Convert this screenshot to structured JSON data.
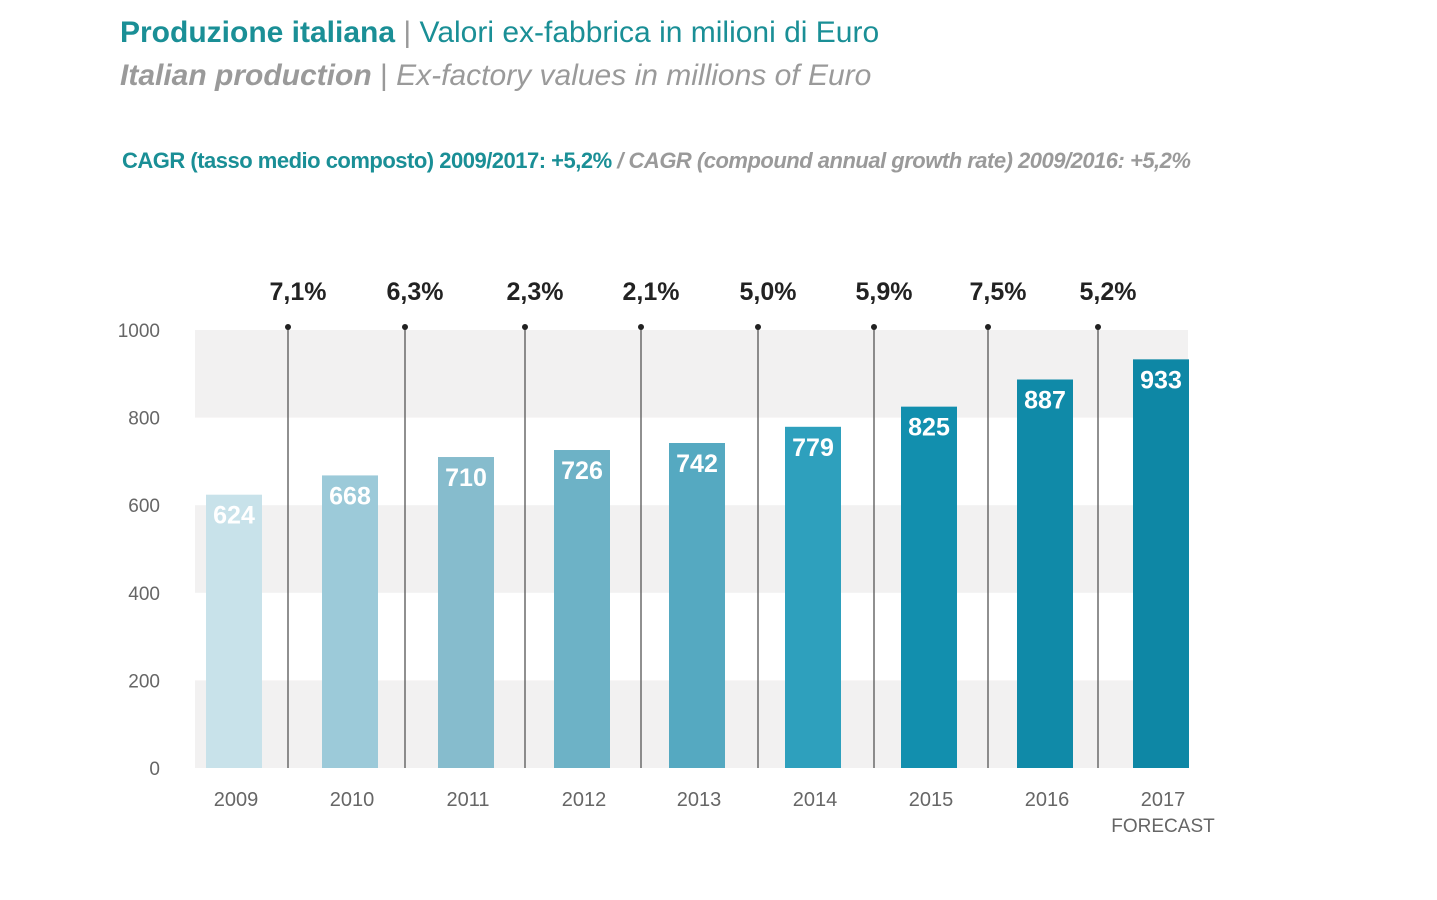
{
  "header": {
    "title_it_bold": "Produzione italiana",
    "title_it_rest": "Valori ex-fabbrica in milioni di Euro",
    "title_en_bold": "Italian production",
    "title_en_rest": "Ex-factory values in millions of Euro",
    "separator": "|",
    "cagr_it": "CAGR (tasso medio composto) 2009/2017: +5,2%",
    "cagr_slash": "/",
    "cagr_en": "CAGR (compound annual growth rate) 2009/2016: +5,2%"
  },
  "colors": {
    "accent": "#1a8f96",
    "secondary_text": "#9a9a9a",
    "band": "#f2f1f1"
  },
  "chart_data": {
    "type": "bar",
    "title": "Produzione italiana | Valori ex-fabbrica in milioni di Euro",
    "categories": [
      "2009",
      "2010",
      "2011",
      "2012",
      "2013",
      "2014",
      "2015",
      "2016",
      "2017"
    ],
    "category_sublabels": [
      "",
      "",
      "",
      "",
      "",
      "",
      "",
      "",
      "FORECAST"
    ],
    "values": [
      624,
      668,
      710,
      726,
      742,
      779,
      825,
      887,
      933
    ],
    "value_labels": [
      "624",
      "668",
      "710",
      "726",
      "742",
      "779",
      "825",
      "887",
      "933"
    ],
    "bar_colors": [
      "#c8e2ea",
      "#9ccad9",
      "#86bccd",
      "#6db2c6",
      "#55a9c1",
      "#2ea0bd",
      "#128fae",
      "#108aa8",
      "#0e87a5"
    ],
    "growth_rates": [
      "7,1%",
      "6,3%",
      "2,3%",
      "2,1%",
      "5,0%",
      "5,9%",
      "7,5%",
      "5,2%"
    ],
    "yticks": [
      0,
      200,
      400,
      600,
      800,
      1000
    ],
    "ylim": [
      0,
      1000
    ],
    "grid": "alternating bands",
    "xlabel": "",
    "ylabel": ""
  }
}
